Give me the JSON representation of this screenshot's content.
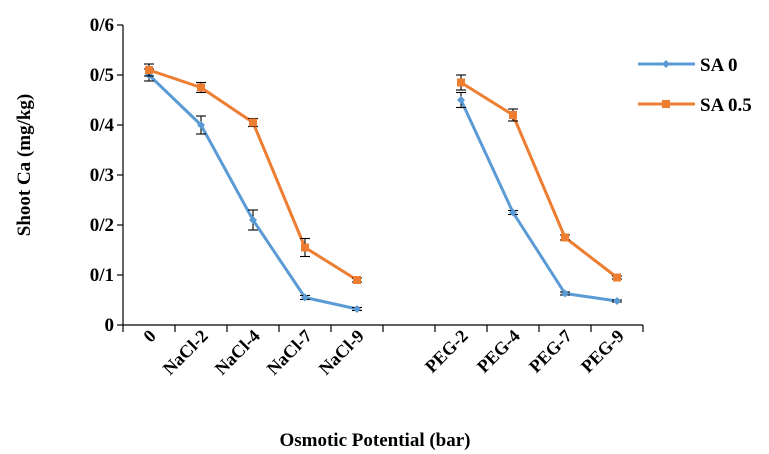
{
  "chart_data": {
    "type": "line",
    "title": "",
    "xlabel": "Osmotic Potential (bar)",
    "ylabel": "Shoot Ca (mg/kg)",
    "ylim": [
      0,
      0.6
    ],
    "yticks": [
      "0",
      "0/1",
      "0/2",
      "0/3",
      "0/4",
      "0/5",
      "0/6"
    ],
    "categories": [
      "0",
      "NaCl-2",
      "NaCl-4",
      "NaCl-7",
      "NaCl-9",
      "",
      "PEG-2",
      "PEG-4",
      "PEG-7",
      "PEG-9"
    ],
    "grid": false,
    "legend_position": "right",
    "series": [
      {
        "name": "SA 0",
        "color": "#5B9BD5",
        "marker": "diamond",
        "values": [
          0.5,
          0.4,
          0.21,
          0.055,
          0.032,
          null,
          0.45,
          0.225,
          0.063,
          0.048
        ],
        "errors": [
          0.012,
          0.018,
          0.02,
          0.004,
          0.003,
          null,
          0.015,
          0.004,
          0.003,
          0.002
        ]
      },
      {
        "name": "SA 0.5",
        "color": "#ED7D31",
        "marker": "square",
        "values": [
          0.51,
          0.475,
          0.405,
          0.155,
          0.09,
          null,
          0.485,
          0.42,
          0.175,
          0.095
        ],
        "errors": [
          0.012,
          0.01,
          0.008,
          0.018,
          0.004,
          null,
          0.015,
          0.012,
          0.005,
          0.003
        ]
      }
    ]
  }
}
